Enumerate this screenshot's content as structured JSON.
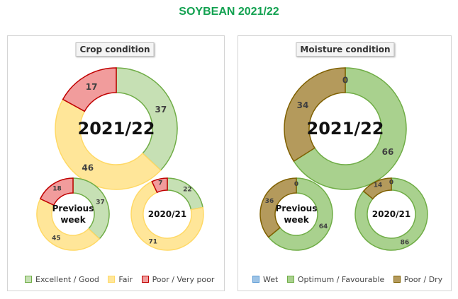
{
  "page": {
    "title": "SOYBEAN 2021/22"
  },
  "colors": {
    "excellent_good": {
      "fill": "#C6E0B4",
      "stroke": "#70AD47"
    },
    "fair": {
      "fill": "#FFE699",
      "stroke": "#FFD966"
    },
    "poor_very_poor": {
      "fill": "#F19C9C",
      "stroke": "#C00000"
    },
    "wet": {
      "fill": "#9DC3E6",
      "stroke": "#5B9BD5"
    },
    "optimum_favourable": {
      "fill": "#A9D18E",
      "stroke": "#70AD47"
    },
    "poor_dry": {
      "fill": "#B49A5C",
      "stroke": "#7F6000"
    }
  },
  "crop_panel": {
    "title": "Crop condition"
  },
  "moisture_panel": {
    "title": "Moisture condition"
  },
  "chart_data": [
    {
      "type": "pie",
      "variant": "donut",
      "title": "Crop condition",
      "legend": [
        "Excellent / Good",
        "Fair",
        "Poor / Very poor"
      ],
      "legend_position": "bottom",
      "donuts": [
        {
          "center_label": [
            "2021/22"
          ],
          "values": [
            37,
            46,
            17
          ]
        },
        {
          "center_label": [
            "Previous",
            "week"
          ],
          "values": [
            37,
            45,
            18
          ]
        },
        {
          "center_label": [
            "2020/21"
          ],
          "values": [
            22,
            71,
            7
          ]
        }
      ]
    },
    {
      "type": "pie",
      "variant": "donut",
      "title": "Moisture condition",
      "legend": [
        "Wet",
        "Optimum / Favourable",
        "Poor / Dry"
      ],
      "legend_position": "bottom",
      "donuts": [
        {
          "center_label": [
            "2021/22"
          ],
          "values": [
            0,
            66,
            34
          ]
        },
        {
          "center_label": [
            "Previous",
            "week"
          ],
          "values": [
            0,
            64,
            36
          ]
        },
        {
          "center_label": [
            "2020/21"
          ],
          "values": [
            0,
            86,
            14
          ]
        }
      ]
    }
  ]
}
